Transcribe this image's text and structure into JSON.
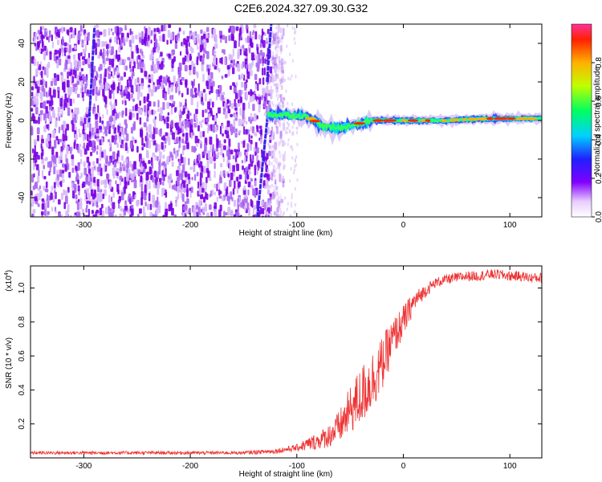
{
  "title": "C2E6.2024.327.09.30.G32",
  "chart_data": [
    {
      "type": "heatmap",
      "xlabel": "Height of straight line (km)",
      "ylabel": "Frequency (Hz)",
      "xlim": [
        -350,
        130
      ],
      "ylim": [
        -50,
        50
      ],
      "xticks": [
        -300,
        -200,
        -100,
        0,
        100
      ],
      "yticks": [
        -40,
        -20,
        0,
        20,
        40
      ],
      "colorbar": {
        "label": "Normalized spectral amplitude",
        "ticks": [
          0.0,
          0.2,
          0.4,
          0.6,
          0.8
        ],
        "range": [
          0,
          1
        ]
      },
      "features": {
        "noise_region_x": [
          -350,
          -125
        ],
        "tracked_signal": [
          {
            "x": -128,
            "y": 3
          },
          {
            "x": -110,
            "y": 3
          },
          {
            "x": -90,
            "y": 2
          },
          {
            "x": -75,
            "y": -3
          },
          {
            "x": -60,
            "y": -4
          },
          {
            "x": -45,
            "y": -2
          },
          {
            "x": -30,
            "y": 0
          },
          {
            "x": -15,
            "y": 0
          },
          {
            "x": 0,
            "y": 0
          },
          {
            "x": 40,
            "y": 0
          },
          {
            "x": 80,
            "y": 1
          },
          {
            "x": 130,
            "y": 1
          }
        ],
        "streaks": [
          {
            "x0": -295,
            "y0": -1,
            "x1": -290,
            "y1": 48
          },
          {
            "x0": -137,
            "y0": -50,
            "x1": -127,
            "y1": 5
          },
          {
            "x0": -128,
            "y0": 20,
            "x1": -124,
            "y1": 50
          }
        ]
      }
    },
    {
      "type": "line",
      "xlabel": "Height of straight line (km)",
      "ylabel": "SNR (10 * v/v)",
      "yscale_label": "(x10",
      "yscale_exp": "4",
      "yscale_close": ")",
      "xlim": [
        -350,
        130
      ],
      "ylim": [
        0,
        1.13
      ],
      "xticks": [
        -300,
        -200,
        -100,
        0,
        100
      ],
      "yticks": [
        0.2,
        0.4,
        0.6,
        0.8,
        1.0
      ],
      "series": [
        {
          "color": "#ee3333",
          "x": [
            -350,
            -300,
            -250,
            -200,
            -150,
            -120,
            -100,
            -90,
            -80,
            -70,
            -60,
            -50,
            -40,
            -30,
            -20,
            -10,
            0,
            10,
            20,
            30,
            40,
            50,
            60,
            70,
            80,
            90,
            100,
            110,
            120,
            130
          ],
          "y": [
            0.03,
            0.03,
            0.03,
            0.03,
            0.03,
            0.04,
            0.06,
            0.08,
            0.1,
            0.13,
            0.18,
            0.28,
            0.36,
            0.45,
            0.55,
            0.7,
            0.8,
            0.92,
            0.98,
            1.03,
            1.05,
            1.06,
            1.07,
            1.07,
            1.08,
            1.08,
            1.07,
            1.07,
            1.06,
            1.06
          ],
          "noise": [
            0.01,
            0.01,
            0.01,
            0.01,
            0.01,
            0.015,
            0.02,
            0.04,
            0.05,
            0.07,
            0.1,
            0.14,
            0.18,
            0.18,
            0.16,
            0.12,
            0.1,
            0.06,
            0.04,
            0.03,
            0.03,
            0.03,
            0.03,
            0.03,
            0.03,
            0.03,
            0.03,
            0.03,
            0.03,
            0.03
          ]
        }
      ]
    }
  ]
}
